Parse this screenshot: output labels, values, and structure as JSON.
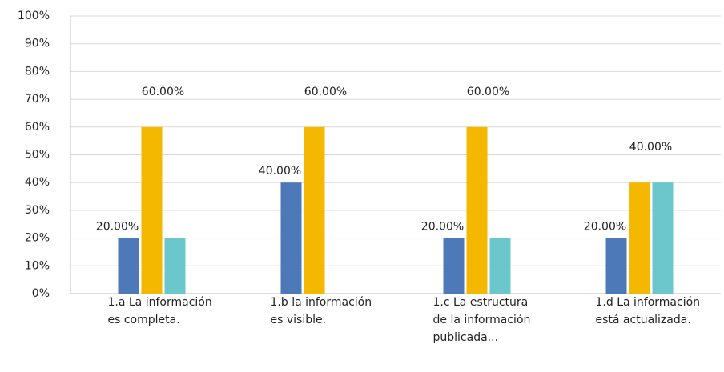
{
  "chart_data": {
    "type": "bar",
    "categories": [
      "1.a La información es completa.",
      "1.b la información es visible.",
      "1.c La estructura de la información publicada...",
      "1.d La información está actualizada."
    ],
    "series": [
      {
        "color": "#4e79b8",
        "values": [
          20,
          40,
          20,
          20
        ],
        "value_labels": [
          "20.00%",
          "40.00%",
          "20.00%",
          "20.00%"
        ]
      },
      {
        "color": "#f5b800",
        "values": [
          60,
          60,
          60,
          40
        ],
        "value_labels": [
          "60.00%",
          "60.00%",
          "60.00%",
          "40.00%"
        ]
      },
      {
        "color": "#6cc7cc",
        "values": [
          20,
          0,
          20,
          40
        ]
      }
    ],
    "ylim": [
      0,
      100
    ],
    "yticks": [
      {
        "value": 0,
        "label": "0%"
      },
      {
        "value": 10,
        "label": "10%"
      },
      {
        "value": 20,
        "label": "20%"
      },
      {
        "value": 30,
        "label": "30%"
      },
      {
        "value": 40,
        "label": "40%"
      },
      {
        "value": 50,
        "label": "50%"
      },
      {
        "value": 60,
        "label": "60%"
      },
      {
        "value": 70,
        "label": "70%"
      },
      {
        "value": 80,
        "label": "80%"
      },
      {
        "value": 90,
        "label": "90%"
      },
      {
        "value": 100,
        "label": "100%"
      }
    ],
    "grid": true
  }
}
